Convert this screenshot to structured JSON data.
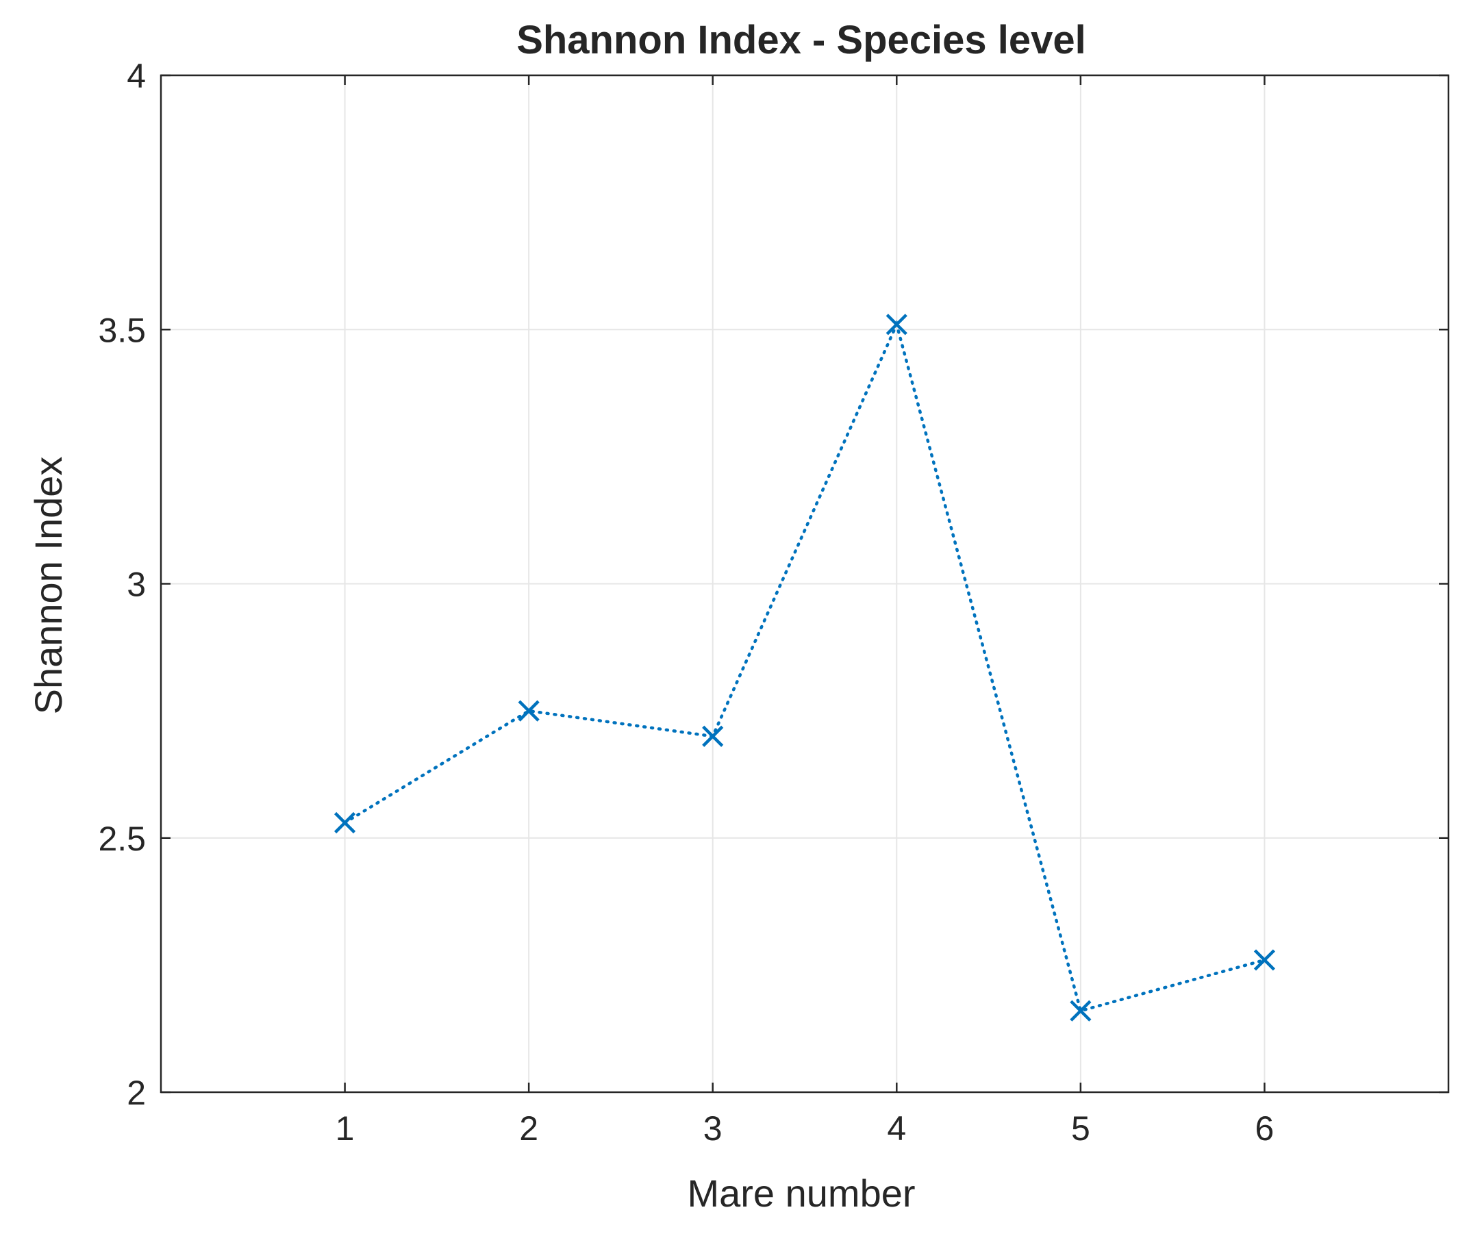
{
  "chart_data": {
    "type": "line",
    "title": "Shannon Index - Species level",
    "xlabel": "Mare number",
    "ylabel": "Shannon Index",
    "xlim": [
      0,
      7
    ],
    "ylim": [
      2,
      4
    ],
    "x_ticks": [
      1,
      2,
      3,
      4,
      5,
      6
    ],
    "x_tick_labels": [
      "1",
      "2",
      "3",
      "4",
      "5",
      "6"
    ],
    "y_ticks": [
      2,
      2.5,
      3,
      3.5,
      4
    ],
    "y_tick_labels": [
      "2",
      "2.5",
      "3",
      "3.5",
      "4"
    ],
    "grid": true,
    "line_style": "dotted",
    "marker": "x",
    "series": [
      {
        "x": [
          1,
          2,
          3,
          4,
          5,
          6
        ],
        "values": [
          2.53,
          2.75,
          2.7,
          3.51,
          2.16,
          2.26
        ]
      }
    ],
    "colors": {
      "series": "#0072BD",
      "axis": "#262626",
      "grid": "#E6E6E6"
    }
  }
}
